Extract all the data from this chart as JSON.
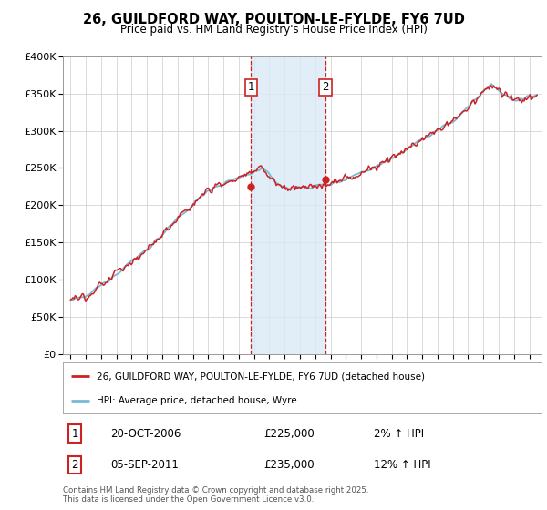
{
  "title": "26, GUILDFORD WAY, POULTON-LE-FYLDE, FY6 7UD",
  "subtitle": "Price paid vs. HM Land Registry's House Price Index (HPI)",
  "legend_line1": "26, GUILDFORD WAY, POULTON-LE-FYLDE, FY6 7UD (detached house)",
  "legend_line2": "HPI: Average price, detached house, Wyre",
  "transaction1_date": "20-OCT-2006",
  "transaction1_price": "£225,000",
  "transaction1_hpi": "2% ↑ HPI",
  "transaction2_date": "05-SEP-2011",
  "transaction2_price": "£235,000",
  "transaction2_hpi": "12% ↑ HPI",
  "copyright": "Contains HM Land Registry data © Crown copyright and database right 2025.\nThis data is licensed under the Open Government Licence v3.0.",
  "ylim": [
    0,
    400000
  ],
  "hpi_line_color": "#7ab8d9",
  "price_line_color": "#cc2222",
  "shade_color": "#daeaf7",
  "vline_color": "#cc2222",
  "background_color": "#ffffff",
  "grid_color": "#cccccc",
  "transaction1_x": 2006.8,
  "transaction2_x": 2011.67
}
